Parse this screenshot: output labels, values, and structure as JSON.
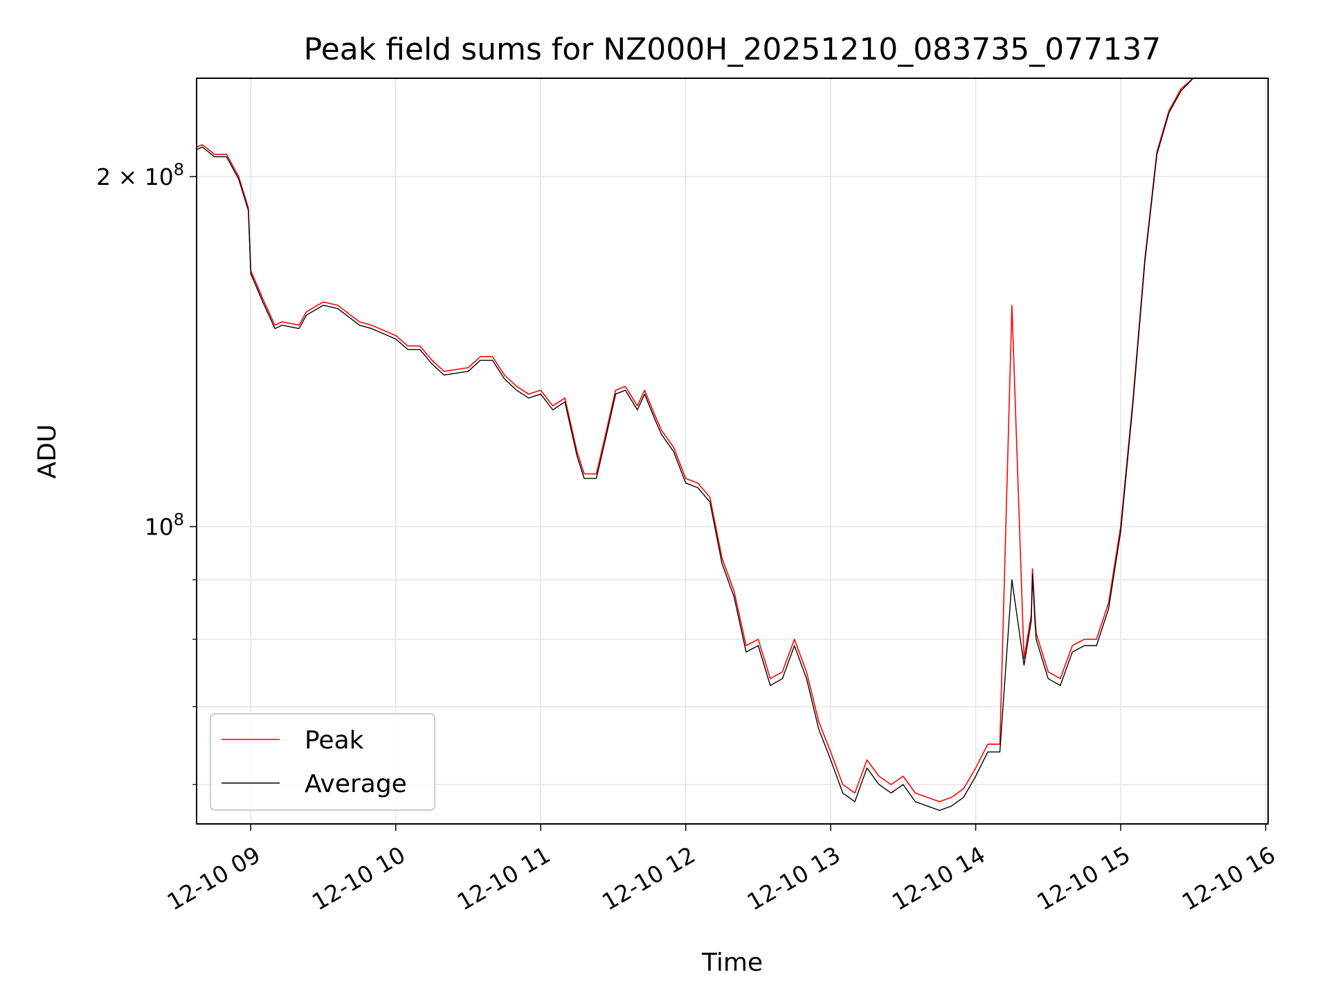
{
  "chart_data": {
    "type": "line",
    "title": "Peak field sums for NZ000H_20251210_083735_077137",
    "xlabel": "Time",
    "ylabel": "ADU",
    "yscale": "log",
    "ylim": [
      55500000,
      243000000
    ],
    "xlim": [
      "2025-12-10T08:37:35",
      "2025-12-10T16:01:00"
    ],
    "grid": true,
    "legend_position": "lower-left",
    "x_ticks": [
      {
        "label": "12-10 09",
        "time": "2025-12-10T09:00:00"
      },
      {
        "label": "12-10 10",
        "time": "2025-12-10T10:00:00"
      },
      {
        "label": "12-10 11",
        "time": "2025-12-10T11:00:00"
      },
      {
        "label": "12-10 12",
        "time": "2025-12-10T12:00:00"
      },
      {
        "label": "12-10 13",
        "time": "2025-12-10T13:00:00"
      },
      {
        "label": "12-10 14",
        "time": "2025-12-10T14:00:00"
      },
      {
        "label": "12-10 15",
        "time": "2025-12-10T15:00:00"
      },
      {
        "label": "12-10 16",
        "time": "2025-12-10T16:00:00"
      }
    ],
    "y_ticks_major": [
      {
        "label_base": "10",
        "label_exp": "8",
        "label_prefix": "",
        "value": 100000000
      },
      {
        "label_base": "10",
        "label_exp": "8",
        "label_prefix": "2 × ",
        "value": 200000000
      }
    ],
    "y_ticks_minor": [
      60000000,
      70000000,
      80000000,
      90000000
    ],
    "series": [
      {
        "name": "Peak",
        "color": "#ff0000",
        "x": [
          "2025-12-10T08:37:35",
          "2025-12-10T08:40:00",
          "2025-12-10T08:45:00",
          "2025-12-10T08:50:00",
          "2025-12-10T08:55:00",
          "2025-12-10T08:59:00",
          "2025-12-10T09:00:00",
          "2025-12-10T09:05:00",
          "2025-12-10T09:10:00",
          "2025-12-10T09:13:00",
          "2025-12-10T09:20:00",
          "2025-12-10T09:23:00",
          "2025-12-10T09:30:00",
          "2025-12-10T09:36:00",
          "2025-12-10T09:45:00",
          "2025-12-10T09:50:00",
          "2025-12-10T10:00:00",
          "2025-12-10T10:05:00",
          "2025-12-10T10:10:00",
          "2025-12-10T10:15:00",
          "2025-12-10T10:20:00",
          "2025-12-10T10:30:00",
          "2025-12-10T10:35:00",
          "2025-12-10T10:40:00",
          "2025-12-10T10:45:00",
          "2025-12-10T10:50:00",
          "2025-12-10T10:55:00",
          "2025-12-10T11:00:00",
          "2025-12-10T11:05:00",
          "2025-12-10T11:10:00",
          "2025-12-10T11:15:00",
          "2025-12-10T11:18:00",
          "2025-12-10T11:23:00",
          "2025-12-10T11:26:00",
          "2025-12-10T11:31:00",
          "2025-12-10T11:35:00",
          "2025-12-10T11:40:00",
          "2025-12-10T11:43:00",
          "2025-12-10T11:47:00",
          "2025-12-10T11:50:00",
          "2025-12-10T11:55:00",
          "2025-12-10T12:00:00",
          "2025-12-10T12:05:00",
          "2025-12-10T12:10:00",
          "2025-12-10T12:15:00",
          "2025-12-10T12:20:00",
          "2025-12-10T12:25:00",
          "2025-12-10T12:30:00",
          "2025-12-10T12:35:00",
          "2025-12-10T12:40:00",
          "2025-12-10T12:45:00",
          "2025-12-10T12:50:00",
          "2025-12-10T12:55:00",
          "2025-12-10T13:00:00",
          "2025-12-10T13:05:00",
          "2025-12-10T13:10:00",
          "2025-12-10T13:15:00",
          "2025-12-10T13:20:00",
          "2025-12-10T13:25:00",
          "2025-12-10T13:30:00",
          "2025-12-10T13:35:00",
          "2025-12-10T13:40:00",
          "2025-12-10T13:45:00",
          "2025-12-10T13:50:00",
          "2025-12-10T13:55:00",
          "2025-12-10T14:00:00",
          "2025-12-10T14:05:00",
          "2025-12-10T14:10:00",
          "2025-12-10T14:15:00",
          "2025-12-10T14:20:00",
          "2025-12-10T14:23:00",
          "2025-12-10T14:23:30",
          "2025-12-10T14:24:00",
          "2025-12-10T14:24:30",
          "2025-12-10T14:25:00",
          "2025-12-10T14:30:00",
          "2025-12-10T14:35:00",
          "2025-12-10T14:40:00",
          "2025-12-10T14:45:00",
          "2025-12-10T14:50:00",
          "2025-12-10T14:55:00",
          "2025-12-10T15:00:00",
          "2025-12-10T15:05:00",
          "2025-12-10T15:10:00",
          "2025-12-10T15:15:00",
          "2025-12-10T15:20:00",
          "2025-12-10T15:25:00",
          "2025-12-10T15:30:00",
          "2025-12-10T15:35:00",
          "2025-12-10T15:40:00",
          "2025-12-10T15:45:00",
          "2025-12-10T15:48:00",
          "2025-12-10T15:50:00",
          "2025-12-10T15:55:00",
          "2025-12-10T16:00:00",
          "2025-12-10T16:01:00"
        ],
        "y": [
          212000000,
          213000000,
          209000000,
          209000000,
          200000000,
          188000000,
          166000000,
          157000000,
          149000000,
          150000000,
          149000000,
          153000000,
          156000000,
          155000000,
          150000000,
          149000000,
          146000000,
          143000000,
          143000000,
          139000000,
          136000000,
          137000000,
          140000000,
          140000000,
          135000000,
          132000000,
          130000000,
          131000000,
          127000000,
          129000000,
          116000000,
          111000000,
          111000000,
          118000000,
          131000000,
          132000000,
          127000000,
          131000000,
          125000000,
          121000000,
          117000000,
          110000000,
          109000000,
          106000000,
          94000000,
          88000000,
          79000000,
          80000000,
          74000000,
          75000000,
          80000000,
          75000000,
          68000000,
          64000000,
          60000000,
          59000000,
          63000000,
          61000000,
          60000000,
          61000000,
          59000000,
          58500000,
          58000000,
          58500000,
          59500000,
          62000000,
          65000000,
          65000000,
          155000000,
          77000000,
          84000000,
          92000000,
          88000000,
          84000000,
          81000000,
          75000000,
          74000000,
          79000000,
          80000000,
          80000000,
          86000000,
          100000000,
          128000000,
          170000000,
          210000000,
          228000000,
          238000000,
          243000000,
          243000000,
          243000000,
          243000000,
          243000000,
          243000000,
          243000000,
          243000000,
          243000000
        ]
      },
      {
        "name": "Average",
        "color": "#000000",
        "x": [
          "2025-12-10T08:37:35",
          "2025-12-10T08:40:00",
          "2025-12-10T08:45:00",
          "2025-12-10T08:50:00",
          "2025-12-10T08:55:00",
          "2025-12-10T08:59:00",
          "2025-12-10T09:00:00",
          "2025-12-10T09:05:00",
          "2025-12-10T09:10:00",
          "2025-12-10T09:13:00",
          "2025-12-10T09:20:00",
          "2025-12-10T09:23:00",
          "2025-12-10T09:30:00",
          "2025-12-10T09:36:00",
          "2025-12-10T09:45:00",
          "2025-12-10T09:50:00",
          "2025-12-10T10:00:00",
          "2025-12-10T10:05:00",
          "2025-12-10T10:10:00",
          "2025-12-10T10:15:00",
          "2025-12-10T10:20:00",
          "2025-12-10T10:30:00",
          "2025-12-10T10:35:00",
          "2025-12-10T10:40:00",
          "2025-12-10T10:45:00",
          "2025-12-10T10:50:00",
          "2025-12-10T10:55:00",
          "2025-12-10T11:00:00",
          "2025-12-10T11:05:00",
          "2025-12-10T11:10:00",
          "2025-12-10T11:15:00",
          "2025-12-10T11:18:00",
          "2025-12-10T11:23:00",
          "2025-12-10T11:26:00",
          "2025-12-10T11:31:00",
          "2025-12-10T11:35:00",
          "2025-12-10T11:40:00",
          "2025-12-10T11:43:00",
          "2025-12-10T11:47:00",
          "2025-12-10T11:50:00",
          "2025-12-10T11:55:00",
          "2025-12-10T12:00:00",
          "2025-12-10T12:05:00",
          "2025-12-10T12:10:00",
          "2025-12-10T12:15:00",
          "2025-12-10T12:20:00",
          "2025-12-10T12:25:00",
          "2025-12-10T12:30:00",
          "2025-12-10T12:35:00",
          "2025-12-10T12:40:00",
          "2025-12-10T12:45:00",
          "2025-12-10T12:50:00",
          "2025-12-10T12:55:00",
          "2025-12-10T13:00:00",
          "2025-12-10T13:05:00",
          "2025-12-10T13:10:00",
          "2025-12-10T13:15:00",
          "2025-12-10T13:20:00",
          "2025-12-10T13:25:00",
          "2025-12-10T13:30:00",
          "2025-12-10T13:35:00",
          "2025-12-10T13:40:00",
          "2025-12-10T13:45:00",
          "2025-12-10T13:50:00",
          "2025-12-10T13:55:00",
          "2025-12-10T14:00:00",
          "2025-12-10T14:05:00",
          "2025-12-10T14:10:00",
          "2025-12-10T14:15:00",
          "2025-12-10T14:20:00",
          "2025-12-10T14:23:00",
          "2025-12-10T14:23:30",
          "2025-12-10T14:24:00",
          "2025-12-10T14:24:30",
          "2025-12-10T14:25:00",
          "2025-12-10T14:30:00",
          "2025-12-10T14:35:00",
          "2025-12-10T14:40:00",
          "2025-12-10T14:45:00",
          "2025-12-10T14:50:00",
          "2025-12-10T14:55:00",
          "2025-12-10T15:00:00",
          "2025-12-10T15:05:00",
          "2025-12-10T15:10:00",
          "2025-12-10T15:15:00",
          "2025-12-10T15:20:00",
          "2025-12-10T15:25:00",
          "2025-12-10T15:30:00",
          "2025-12-10T15:35:00",
          "2025-12-10T15:40:00",
          "2025-12-10T15:45:00",
          "2025-12-10T15:48:00",
          "2025-12-10T15:50:00",
          "2025-12-10T15:55:00",
          "2025-12-10T16:00:00",
          "2025-12-10T16:01:00"
        ],
        "y": [
          211000000,
          212000000,
          208000000,
          208000000,
          199000000,
          187000000,
          165000000,
          156000000,
          148000000,
          149000000,
          148000000,
          152000000,
          155000000,
          154000000,
          149000000,
          148000000,
          145000000,
          142000000,
          142000000,
          138000000,
          135000000,
          136000000,
          139000000,
          139000000,
          134000000,
          131000000,
          129000000,
          130000000,
          126000000,
          128000000,
          115000000,
          110000000,
          110000000,
          117000000,
          130000000,
          131000000,
          126000000,
          130000000,
          124000000,
          120000000,
          116000000,
          109000000,
          108000000,
          105000000,
          93000000,
          87000000,
          78000000,
          79000000,
          73000000,
          74000000,
          79000000,
          74000000,
          67000000,
          63000000,
          59000000,
          58000000,
          62000000,
          60000000,
          59000000,
          60000000,
          58000000,
          57500000,
          57000000,
          57500000,
          58500000,
          61000000,
          64000000,
          64000000,
          90000000,
          76000000,
          83000000,
          91000000,
          87000000,
          83000000,
          80000000,
          74000000,
          73000000,
          78000000,
          79000000,
          79000000,
          85000000,
          99000000,
          127000000,
          169000000,
          209000000,
          227000000,
          237000000,
          243000000,
          243000000,
          243000000,
          243000000,
          243000000,
          243000000,
          243000000,
          243000000,
          243000000
        ]
      }
    ]
  }
}
